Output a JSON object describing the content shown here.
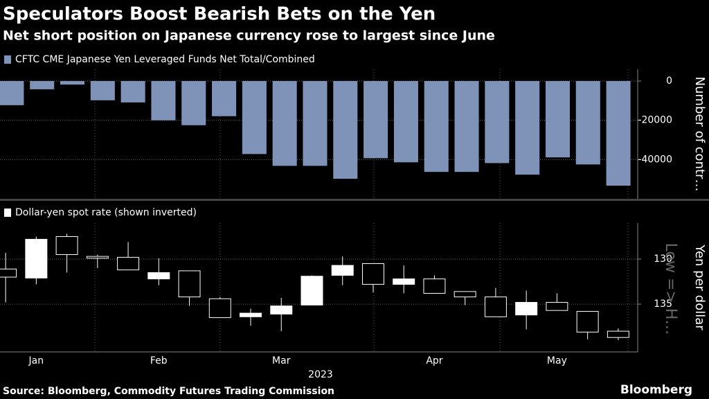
{
  "chart_data": [
    {
      "type": "bar",
      "title": "Speculators Boost Bearish Bets on the Yen",
      "subtitle": "Net short position on Japanese currency rose to largest since June",
      "series": [
        {
          "name": "CFTC CME Japanese Yen Leveraged Funds Net Total/Combined",
          "color": "#7f93b8",
          "values": [
            -12300,
            -4200,
            -1800,
            -9800,
            -10900,
            -20000,
            -22500,
            -17900,
            -37200,
            -43200,
            -43200,
            -49800,
            -39300,
            -41400,
            -46300,
            -46300,
            -41800,
            -47700,
            -38900,
            -42500,
            -53300
          ]
        }
      ],
      "ylabel": "Number of contr…",
      "ylim": [
        -60000,
        6000
      ],
      "yticks": [
        0,
        -20000,
        -40000
      ],
      "grid": true
    },
    {
      "type": "candlestick",
      "series": [
        {
          "name": "Dollar-yen spot rate (shown inverted)",
          "up_color": "#000000",
          "down_color": "#ffffff",
          "open": [
            131.1,
            132.1,
            127.5,
            129.7,
            129.8,
            132.2,
            131.3,
            134.4,
            136.4,
            136.1,
            135.1,
            131.8,
            130.5,
            132.8,
            132.2,
            133.6,
            134.2,
            136.2,
            134.8,
            135.8,
            138.0
          ],
          "high": [
            134.8,
            132.8,
            131.5,
            131.0,
            131.2,
            132.9,
            135.2,
            136.5,
            137.4,
            138.0,
            135.1,
            132.9,
            133.7,
            133.8,
            133.8,
            135.1,
            136.4,
            137.8,
            135.7,
            138.9,
            139.0
          ],
          "low": [
            129.3,
            127.5,
            127.2,
            129.5,
            128.1,
            129.9,
            131.3,
            134.2,
            135.5,
            134.3,
            131.8,
            129.7,
            130.5,
            130.7,
            131.8,
            133.6,
            133.2,
            133.5,
            133.8,
            135.8,
            137.7
          ],
          "close": [
            132.0,
            127.8,
            129.5,
            129.9,
            131.2,
            131.5,
            134.2,
            136.5,
            136.0,
            135.2,
            131.9,
            130.7,
            132.8,
            132.2,
            133.8,
            134.2,
            136.4,
            134.8,
            135.7,
            138.1,
            138.7
          ]
        }
      ],
      "categories": [
        null,
        "Jan",
        null,
        null,
        null,
        "Feb",
        null,
        null,
        null,
        "Mar",
        null,
        null,
        null,
        null,
        "Apr",
        null,
        null,
        null,
        "May",
        null,
        null
      ],
      "xlabel": "2023",
      "ylabel": "Yen per dollar",
      "annotation": "Low => H…",
      "ylim": [
        126,
        140.3
      ],
      "inverted": true,
      "yticks": [
        130,
        135
      ],
      "grid": true,
      "source": "Source: Bloomberg, Commodity Futures Trading Commission",
      "brand": "Bloomberg"
    }
  ]
}
